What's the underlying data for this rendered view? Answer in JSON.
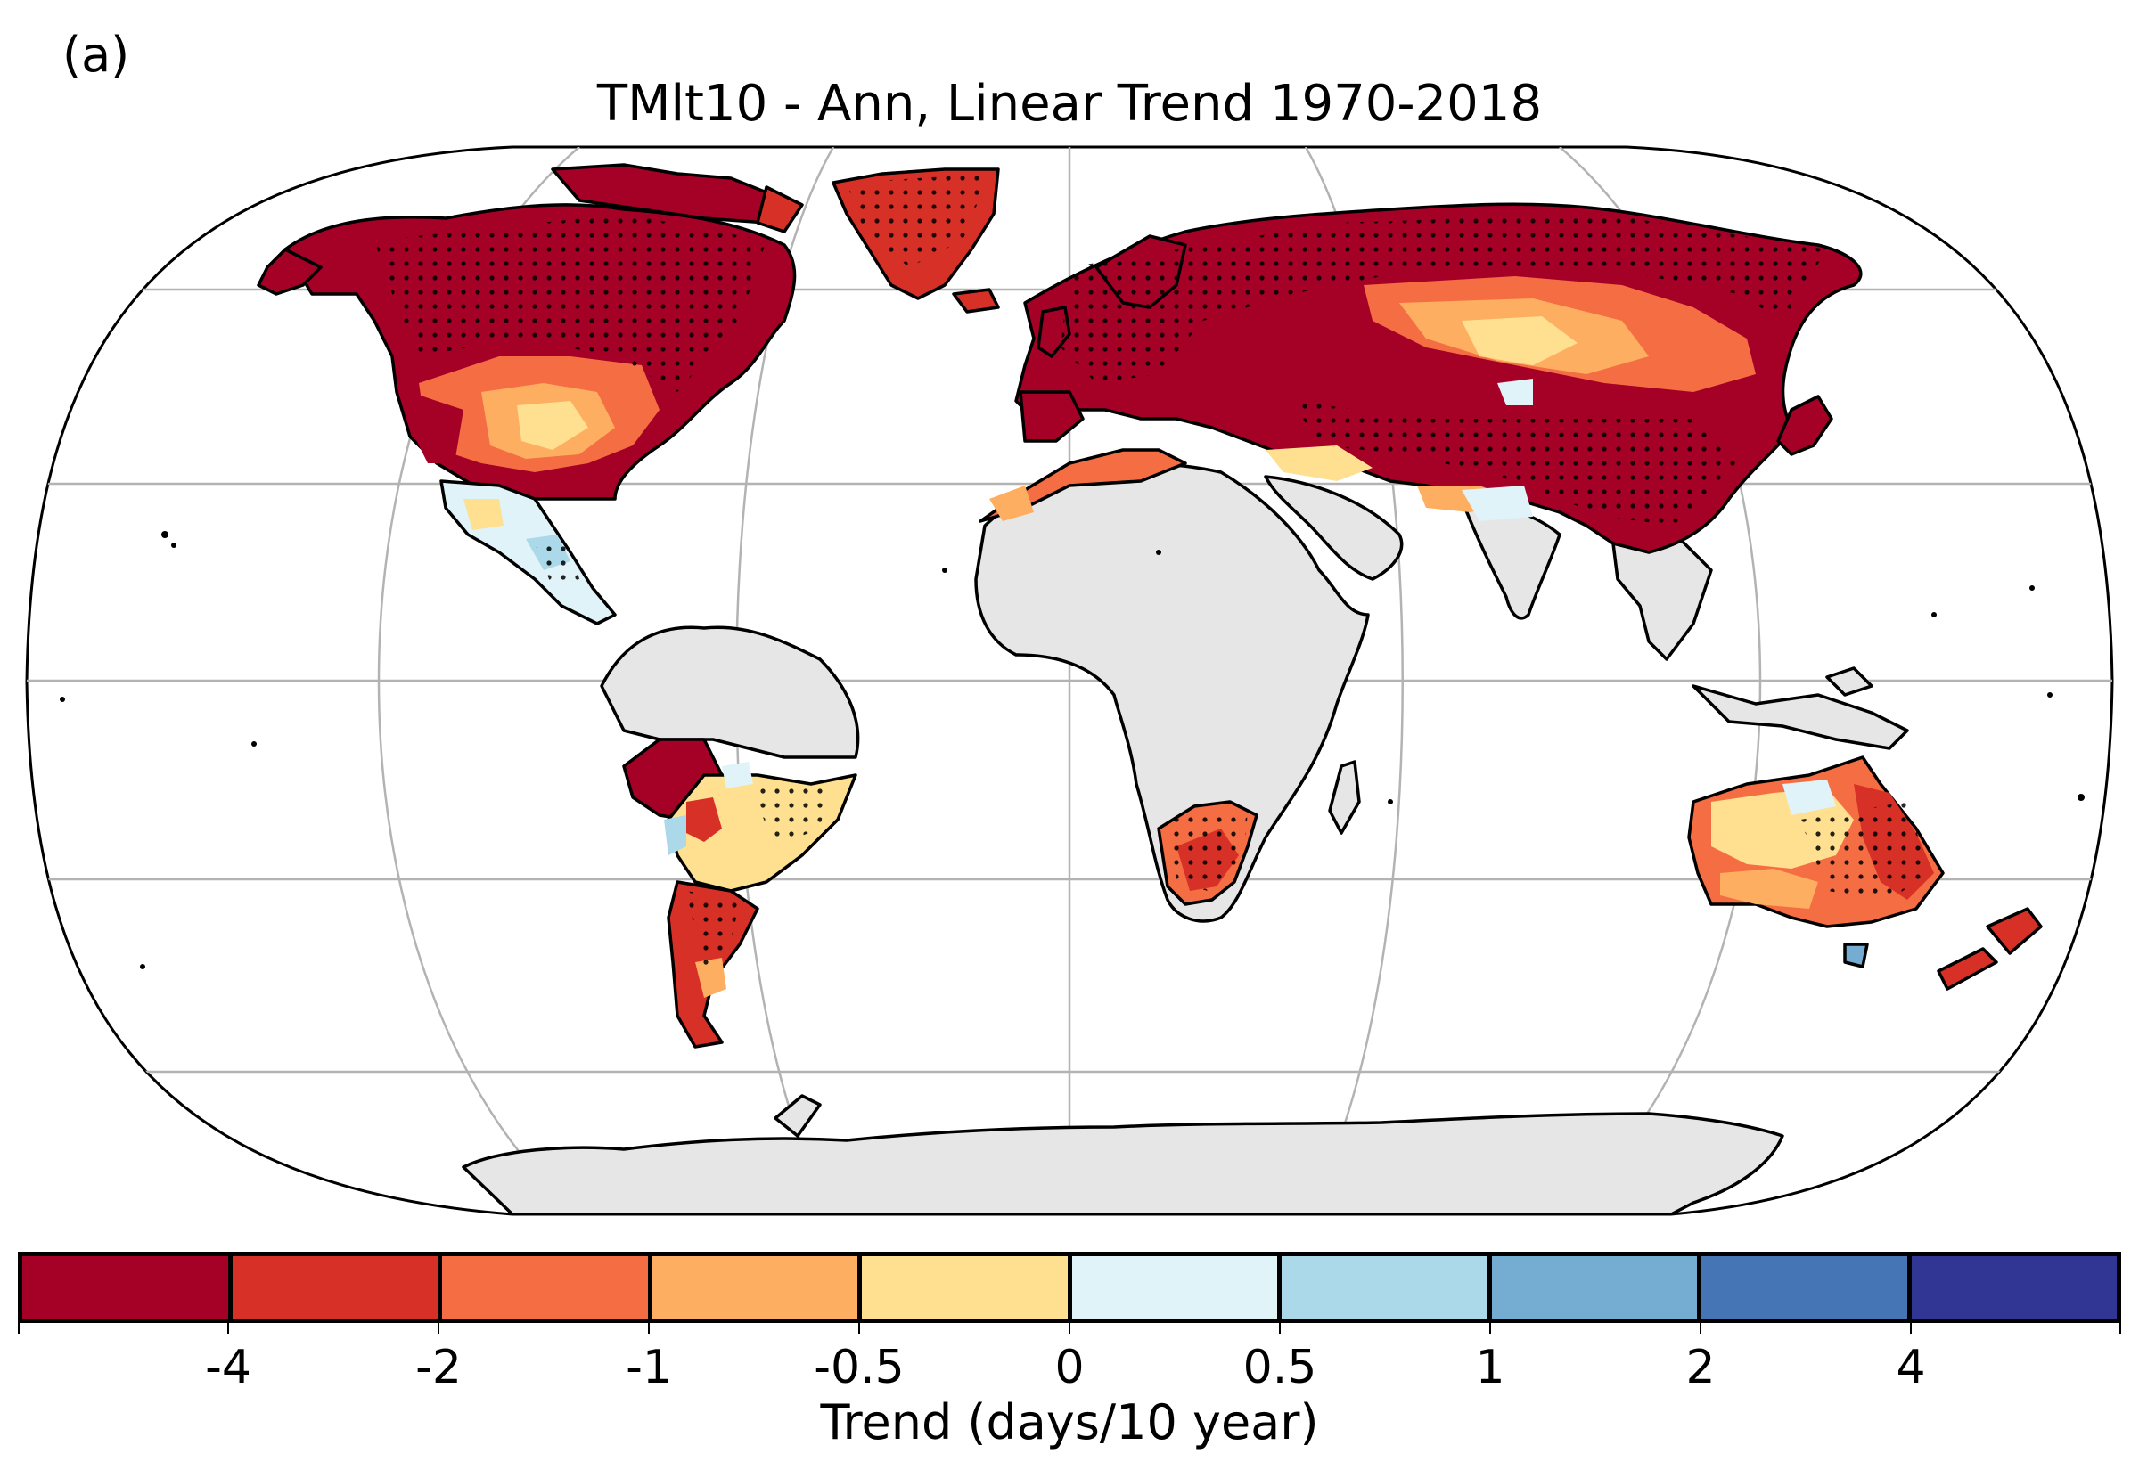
{
  "panel_label": "(a)",
  "title": "TMlt10 - Ann, Linear Trend 1970-2018",
  "colorbar": {
    "label": "Trend (days/10 year)",
    "ticks": [
      "-4",
      "-2",
      "-1",
      "-0.5",
      "0",
      "0.5",
      "1",
      "2",
      "4"
    ],
    "colors": [
      "#a50026",
      "#d73027",
      "#f46d43",
      "#fdae61",
      "#fee090",
      "#e0f3f8",
      "#abd9e9",
      "#74add1",
      "#4575b4",
      "#313695"
    ]
  },
  "map": {
    "projection": "robinson",
    "no_data_color": "#e6e6e6",
    "stipple_meaning": "significant trend",
    "regions": [
      {
        "name": "north-america",
        "trend_class": "-4"
      },
      {
        "name": "central-us",
        "trend_class": "-0.5 to 0"
      },
      {
        "name": "mexico",
        "trend_class": "0 to 0.5"
      },
      {
        "name": "greenland",
        "trend_class": "-4 to -2"
      },
      {
        "name": "europe",
        "trend_class": "-4"
      },
      {
        "name": "russia",
        "trend_class": "-4"
      },
      {
        "name": "central-asia",
        "trend_class": "-0.5 to 0"
      },
      {
        "name": "china",
        "trend_class": "-4"
      },
      {
        "name": "north-africa",
        "trend_class": "-2 to -1"
      },
      {
        "name": "africa",
        "trend_class": "no data"
      },
      {
        "name": "southern-africa",
        "trend_class": "-2 to -1"
      },
      {
        "name": "south-america",
        "trend_class": "-0.5 to 0"
      },
      {
        "name": "bolivia",
        "trend_class": "-4"
      },
      {
        "name": "patagonia",
        "trend_class": "-2 to -1"
      },
      {
        "name": "australia",
        "trend_class": "-1 to -0.5"
      },
      {
        "name": "new-zealand",
        "trend_class": "-2 to -1"
      },
      {
        "name": "antarctica",
        "trend_class": "no data"
      }
    ]
  }
}
